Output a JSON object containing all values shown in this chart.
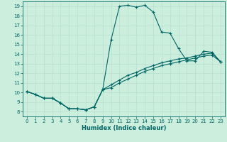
{
  "xlabel": "Humidex (Indice chaleur)",
  "xlim": [
    -0.5,
    23.5
  ],
  "ylim": [
    7.5,
    19.5
  ],
  "xticks": [
    0,
    1,
    2,
    3,
    4,
    5,
    6,
    7,
    8,
    9,
    10,
    11,
    12,
    13,
    14,
    15,
    16,
    17,
    18,
    19,
    20,
    21,
    22,
    23
  ],
  "yticks": [
    8,
    9,
    10,
    11,
    12,
    13,
    14,
    15,
    16,
    17,
    18,
    19
  ],
  "bg_color": "#cceedd",
  "line_color": "#006666",
  "grid_color": "#b8ddd0",
  "line1_x": [
    0,
    1,
    2,
    3,
    4,
    5,
    6,
    7,
    8,
    9,
    10,
    11,
    12,
    13,
    14,
    15,
    16,
    17,
    18,
    19,
    20,
    21,
    22,
    23
  ],
  "line1_y": [
    10.1,
    9.8,
    9.4,
    9.4,
    8.9,
    8.3,
    8.3,
    8.2,
    8.5,
    10.3,
    15.5,
    19.0,
    19.1,
    18.9,
    19.1,
    18.4,
    16.3,
    16.2,
    14.6,
    13.3,
    13.3,
    14.3,
    14.2,
    13.2
  ],
  "line2_x": [
    0,
    1,
    2,
    3,
    4,
    5,
    6,
    7,
    8,
    9,
    10,
    11,
    12,
    13,
    14,
    15,
    16,
    17,
    18,
    19,
    20,
    21,
    22,
    23
  ],
  "line2_y": [
    10.1,
    9.8,
    9.4,
    9.4,
    8.9,
    8.3,
    8.3,
    8.2,
    8.5,
    10.3,
    10.8,
    11.3,
    11.8,
    12.1,
    12.5,
    12.8,
    13.1,
    13.3,
    13.5,
    13.6,
    13.8,
    14.0,
    14.1,
    13.2
  ],
  "line3_x": [
    0,
    1,
    2,
    3,
    4,
    5,
    6,
    7,
    8,
    9,
    10,
    11,
    12,
    13,
    14,
    15,
    16,
    17,
    18,
    19,
    20,
    21,
    22,
    23
  ],
  "line3_y": [
    10.1,
    9.8,
    9.4,
    9.4,
    8.9,
    8.3,
    8.3,
    8.2,
    8.5,
    10.3,
    10.5,
    11.0,
    11.4,
    11.8,
    12.2,
    12.5,
    12.8,
    13.0,
    13.2,
    13.4,
    13.6,
    13.8,
    13.9,
    13.2
  ]
}
